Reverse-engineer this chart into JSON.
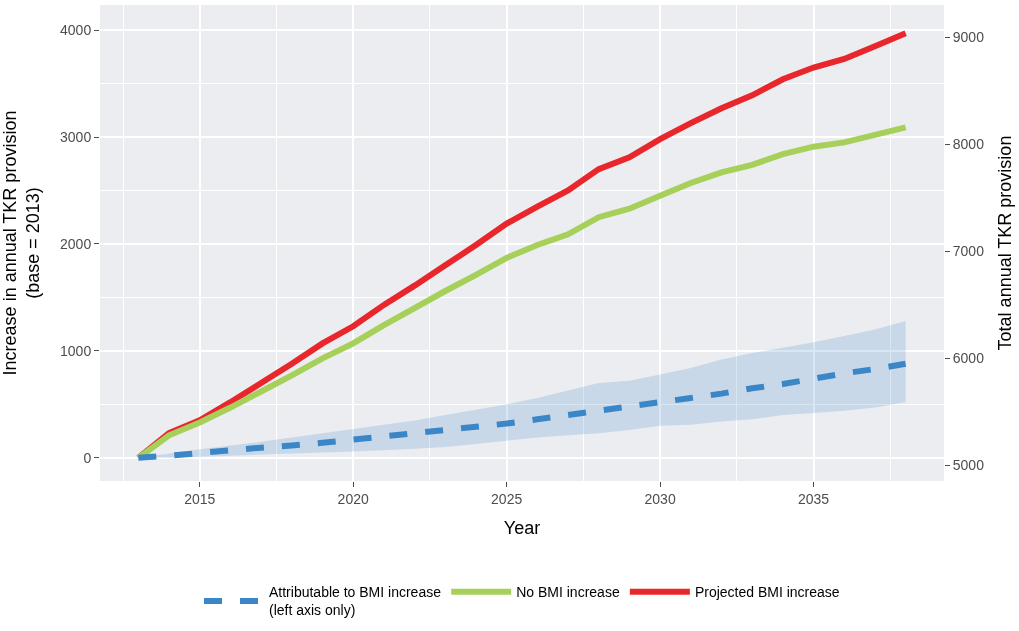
{
  "chart_data": {
    "type": "line",
    "xlabel": "Year",
    "ylabel": "Increase in annual TKR provision\n(base = 2013)",
    "y2label": "Total annual TKR provision",
    "x": [
      2013,
      2014,
      2015,
      2016,
      2017,
      2018,
      2019,
      2020,
      2021,
      2022,
      2023,
      2024,
      2025,
      2026,
      2027,
      2028,
      2029,
      2030,
      2031,
      2032,
      2033,
      2034,
      2035,
      2036,
      2037,
      2038
    ],
    "series": [
      {
        "name": "Projected BMI increase",
        "color": "#e8262b",
        "line_style": "solid",
        "values": [
          0,
          230,
          350,
          520,
          700,
          880,
          1070,
          1230,
          1430,
          1610,
          1800,
          1990,
          2190,
          2350,
          2500,
          2700,
          2810,
          2980,
          3130,
          3270,
          3390,
          3540,
          3650,
          3730,
          3850,
          3970
        ]
      },
      {
        "name": "No BMI increase",
        "color": "#a6d05a",
        "line_style": "solid",
        "values": [
          0,
          210,
          330,
          470,
          620,
          770,
          930,
          1070,
          1240,
          1400,
          1560,
          1710,
          1870,
          1990,
          2090,
          2250,
          2330,
          2450,
          2570,
          2670,
          2740,
          2840,
          2910,
          2950,
          3020,
          3090
        ]
      },
      {
        "name": "Attributable to BMI increase\n(left axis only)",
        "color": "#3b86c6",
        "line_style": "dashed",
        "values": [
          0,
          20,
          45,
          70,
          95,
          115,
          140,
          170,
          200,
          230,
          260,
          290,
          320,
          360,
          400,
          440,
          480,
          520,
          560,
          600,
          650,
          690,
          740,
          790,
          830,
          880
        ],
        "upper": [
          0,
          40,
          80,
          115,
          150,
          190,
          230,
          270,
          310,
          350,
          400,
          450,
          500,
          560,
          630,
          700,
          720,
          780,
          840,
          920,
          980,
          1030,
          1080,
          1140,
          1200,
          1280
        ],
        "lower": [
          0,
          0,
          10,
          20,
          30,
          40,
          50,
          60,
          70,
          85,
          100,
          130,
          160,
          190,
          210,
          230,
          260,
          300,
          310,
          340,
          360,
          400,
          420,
          440,
          470,
          520
        ]
      }
    ],
    "xlim": [
      2011.75,
      2039.25
    ],
    "xticks": [
      2015,
      2020,
      2025,
      2030,
      2035
    ],
    "ylim": [
      -217,
      4235
    ],
    "yticks": [
      0,
      1000,
      2000,
      3000,
      4000
    ],
    "y2lim": [
      4852,
      9304
    ],
    "y2ticks": [
      5000,
      6000,
      7000,
      8000,
      9000
    ],
    "grid": true,
    "legend": "bottom",
    "marker": "none"
  }
}
